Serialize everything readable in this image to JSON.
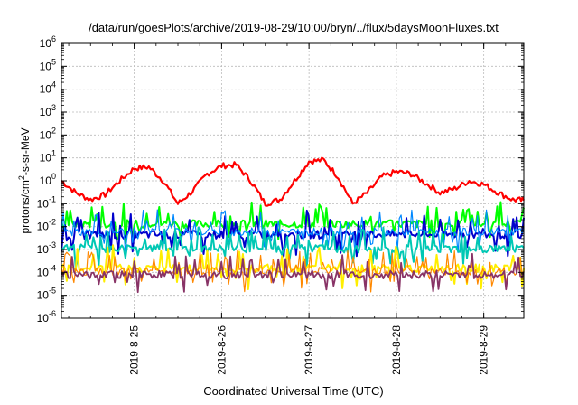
{
  "chart_data": {
    "type": "line",
    "title": "/data/run/goesPlots/archive/2019-08-29/10:00/bryn/../flux/5daysMoonFluxes.txt",
    "xlabel": "Coordinated Universal Time (UTC)",
    "ylabel": {
      "base": "protons/cm",
      "sup": "2",
      "rest": "-s-sr-MeV"
    },
    "xlim": [
      "2019-08-24 04:00",
      "2019-08-29 11:00"
    ],
    "x_ticks": [
      "2019-8-25",
      "2019-8-26",
      "2019-8-27",
      "2019-8-28",
      "2019-8-29"
    ],
    "y_scale": "log",
    "ylim": [
      1e-06,
      1000000.0
    ],
    "y_ticks": [
      {
        "base": "10",
        "exp": "-6"
      },
      {
        "base": "10",
        "exp": "-5"
      },
      {
        "base": "10",
        "exp": "-4"
      },
      {
        "base": "10",
        "exp": "-3"
      },
      {
        "base": "10",
        "exp": "-2"
      },
      {
        "base": "10",
        "exp": "-1"
      },
      {
        "base": "10",
        "exp": "0"
      },
      {
        "base": "10",
        "exp": "1"
      },
      {
        "base": "10",
        "exp": "2"
      },
      {
        "base": "10",
        "exp": "3"
      },
      {
        "base": "10",
        "exp": "4"
      },
      {
        "base": "10",
        "exp": "5"
      },
      {
        "base": "10",
        "exp": "6"
      }
    ],
    "grid": true,
    "grid_style": "dashed",
    "series": [
      {
        "color": "#ff0000",
        "width": 2.2,
        "x": [
          "2019-08-24 04:00",
          "2019-08-24 08:00",
          "2019-08-24 12:00",
          "2019-08-24 16:00",
          "2019-08-24 20:00",
          "2019-08-25 00:00",
          "2019-08-25 04:00",
          "2019-08-25 08:00",
          "2019-08-25 12:00",
          "2019-08-25 16:00",
          "2019-08-25 20:00",
          "2019-08-26 00:00",
          "2019-08-26 04:00",
          "2019-08-26 08:00",
          "2019-08-26 12:00",
          "2019-08-26 16:00",
          "2019-08-26 20:00",
          "2019-08-27 00:00",
          "2019-08-27 04:00",
          "2019-08-27 08:00",
          "2019-08-27 12:00",
          "2019-08-27 16:00",
          "2019-08-27 20:00",
          "2019-08-28 00:00",
          "2019-08-28 04:00",
          "2019-08-28 08:00",
          "2019-08-28 12:00",
          "2019-08-28 16:00",
          "2019-08-28 20:00",
          "2019-08-29 00:00",
          "2019-08-29 04:00",
          "2019-08-29 08:00",
          "2019-08-29 11:00"
        ],
        "y": [
          1,
          0.3,
          0.15,
          0.25,
          1,
          3.5,
          4,
          1,
          0.1,
          0.35,
          2,
          4.5,
          5,
          1,
          0.1,
          0.15,
          1,
          7,
          8,
          1.5,
          0.1,
          0.3,
          1.5,
          2.5,
          2,
          0.8,
          0.3,
          0.45,
          1,
          0.7,
          0.3,
          0.15,
          0.14
        ]
      },
      {
        "color": "#00ff00",
        "width": 2,
        "level": 0.013
      },
      {
        "color": "#0000cc",
        "width": 2,
        "level": 0.0045
      },
      {
        "color": "#0088ff",
        "width": 1.2,
        "level": 0.006
      },
      {
        "color": "#00c8b4",
        "width": 2,
        "level": 0.0011
      },
      {
        "color": "#ffee00",
        "width": 2,
        "level": 0.00015
      },
      {
        "color": "#ff8800",
        "width": 1.2,
        "level": 0.00011
      },
      {
        "color": "#883366",
        "width": 1.8,
        "level": 8e-05
      }
    ]
  }
}
